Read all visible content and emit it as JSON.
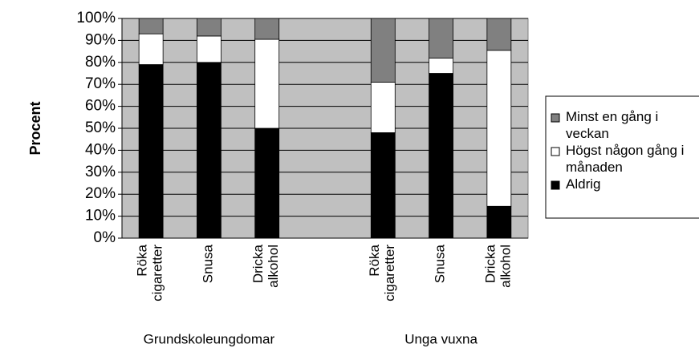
{
  "chart_data": {
    "type": "stacked_bar",
    "y_label": "Procent",
    "categories": [
      "Röka cigaretter",
      "Snusa",
      "Dricka alkohol",
      null,
      "Röka cigaretter",
      "Snusa",
      "Dricka alkohol"
    ],
    "groups": [
      "Grundskoleungdomar",
      "Unga vuxna"
    ],
    "series": [
      {
        "name": "Aldrig",
        "color": "#000000",
        "values": [
          79,
          80,
          50,
          null,
          48,
          75,
          14.5
        ]
      },
      {
        "name": "Högst någon gång i månaden",
        "color": "#ffffff",
        "values": [
          14,
          12,
          40.5,
          null,
          23,
          7,
          71
        ]
      },
      {
        "name": "Minst en gång i veckan",
        "color": "#808080",
        "values": [
          7,
          8,
          9.5,
          null,
          29,
          18,
          14.5
        ]
      }
    ],
    "ylim": [
      0,
      100
    ],
    "yticks": [
      {
        "value": 0,
        "label": "0%"
      },
      {
        "value": 10,
        "label": "10%"
      },
      {
        "value": 20,
        "label": "20%"
      },
      {
        "value": 30,
        "label": "30%"
      },
      {
        "value": 40,
        "label": "40%"
      },
      {
        "value": 50,
        "label": "50%"
      },
      {
        "value": 60,
        "label": "60%"
      },
      {
        "value": 70,
        "label": "70%"
      },
      {
        "value": 80,
        "label": "80%"
      },
      {
        "value": 90,
        "label": "90%"
      },
      {
        "value": 100,
        "label": "100%"
      }
    ],
    "grid": true,
    "legend": "right"
  }
}
